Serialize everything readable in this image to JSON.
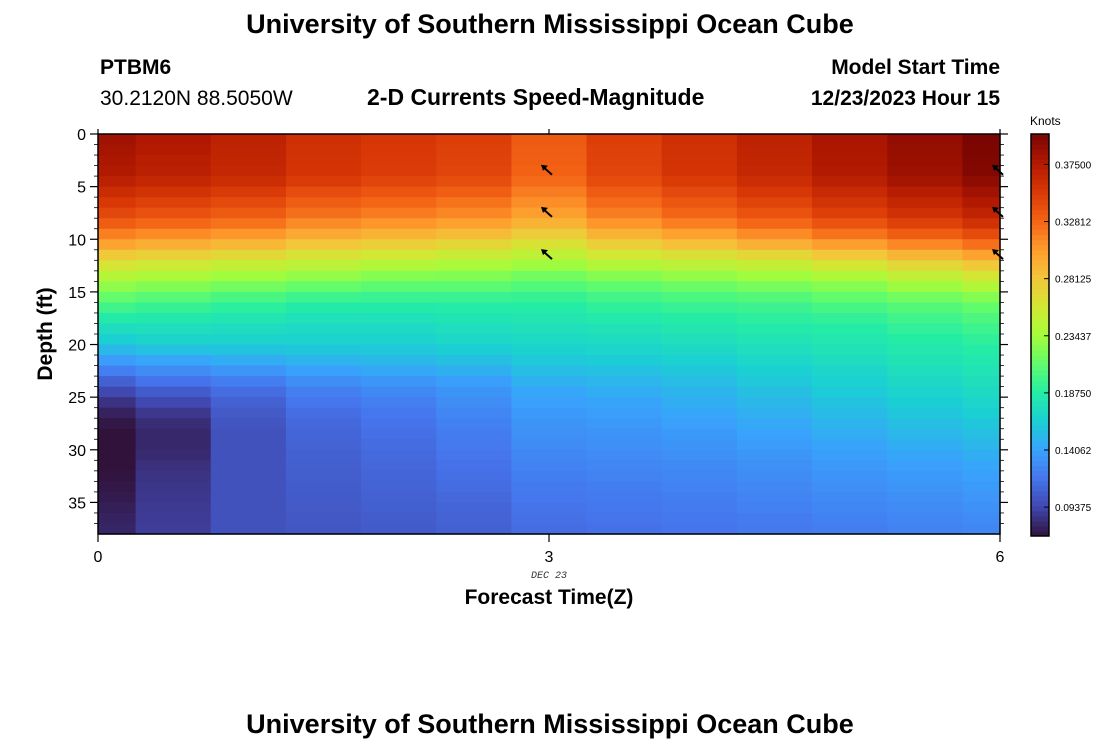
{
  "header": {
    "title": "University of Southern Mississippi Ocean Cube",
    "station_id": "PTBM6",
    "station_coords": "30.2120N  88.5050W",
    "plot_title": "2-D Currents Speed-Magnitude",
    "model_start_label": "Model Start Time",
    "model_start_value": "12/23/2023 Hour 15"
  },
  "footer": {
    "repeat_title": "University of Southern Mississippi Ocean Cube"
  },
  "chart_data": {
    "type": "heatmap",
    "xlabel": "Forecast Time(Z)",
    "ylabel": "Depth (ft)",
    "x_ticks": [
      0,
      3,
      6
    ],
    "x_date_label": "DEC 23",
    "y_ticks": [
      0,
      5,
      10,
      15,
      20,
      25,
      30,
      35
    ],
    "xlim": [
      0,
      6
    ],
    "ylim": [
      38,
      0
    ],
    "colorbar": {
      "label": "Knots",
      "ticks": [
        "0.09375",
        "0.14062",
        "0.18750",
        "0.23437",
        "0.28125",
        "0.32812",
        "0.37500"
      ],
      "range": [
        0.07,
        0.4
      ],
      "colormap": [
        "#30123b",
        "#4145ab",
        "#4675ed",
        "#39a2fc",
        "#1bcfd4",
        "#24eca6",
        "#61fc6c",
        "#a4fc3b",
        "#d1e834",
        "#f3c63a",
        "#fe9b2d",
        "#f36315",
        "#d93806",
        "#b11901",
        "#7a0402"
      ]
    },
    "time_steps": [
      0,
      0.5,
      1,
      1.5,
      2,
      2.5,
      3,
      3.5,
      4,
      4.5,
      5,
      5.5,
      6
    ],
    "depth_profile": {
      "depth_ft": [
        0,
        4,
        8,
        10,
        12,
        14,
        16,
        18,
        20,
        22,
        24,
        26,
        28,
        30,
        32,
        35,
        38
      ],
      "speed_knots_by_time": [
        [
          0.385,
          0.375,
          0.34,
          0.31,
          0.27,
          0.235,
          0.205,
          0.18,
          0.16,
          0.13,
          0.1,
          0.08,
          0.07,
          0.065,
          0.07,
          0.075,
          0.08
        ],
        [
          0.378,
          0.37,
          0.335,
          0.305,
          0.265,
          0.23,
          0.2,
          0.18,
          0.165,
          0.135,
          0.11,
          0.09,
          0.08,
          0.08,
          0.085,
          0.088,
          0.09
        ],
        [
          0.37,
          0.365,
          0.33,
          0.3,
          0.26,
          0.225,
          0.195,
          0.178,
          0.165,
          0.14,
          0.115,
          0.105,
          0.1,
          0.1,
          0.1,
          0.1,
          0.1
        ],
        [
          0.36,
          0.355,
          0.32,
          0.29,
          0.255,
          0.22,
          0.19,
          0.175,
          0.165,
          0.145,
          0.125,
          0.115,
          0.11,
          0.108,
          0.106,
          0.104,
          0.102
        ],
        [
          0.355,
          0.35,
          0.315,
          0.285,
          0.25,
          0.215,
          0.19,
          0.175,
          0.165,
          0.148,
          0.13,
          0.12,
          0.115,
          0.112,
          0.11,
          0.107,
          0.104
        ],
        [
          0.35,
          0.345,
          0.31,
          0.28,
          0.245,
          0.215,
          0.19,
          0.178,
          0.168,
          0.152,
          0.135,
          0.128,
          0.122,
          0.118,
          0.115,
          0.11,
          0.107
        ],
        [
          0.335,
          0.33,
          0.3,
          0.27,
          0.24,
          0.21,
          0.19,
          0.18,
          0.17,
          0.158,
          0.145,
          0.138,
          0.132,
          0.128,
          0.123,
          0.117,
          0.112
        ],
        [
          0.35,
          0.345,
          0.315,
          0.285,
          0.25,
          0.215,
          0.195,
          0.182,
          0.172,
          0.16,
          0.148,
          0.14,
          0.134,
          0.13,
          0.125,
          0.119,
          0.114
        ],
        [
          0.36,
          0.355,
          0.325,
          0.295,
          0.255,
          0.22,
          0.198,
          0.185,
          0.175,
          0.163,
          0.152,
          0.145,
          0.138,
          0.132,
          0.127,
          0.121,
          0.116
        ],
        [
          0.37,
          0.365,
          0.335,
          0.305,
          0.26,
          0.225,
          0.2,
          0.188,
          0.178,
          0.168,
          0.158,
          0.15,
          0.142,
          0.136,
          0.13,
          0.124,
          0.118
        ],
        [
          0.38,
          0.375,
          0.345,
          0.315,
          0.27,
          0.23,
          0.205,
          0.19,
          0.182,
          0.172,
          0.164,
          0.156,
          0.148,
          0.14,
          0.134,
          0.127,
          0.12
        ],
        [
          0.39,
          0.385,
          0.355,
          0.325,
          0.28,
          0.24,
          0.21,
          0.195,
          0.186,
          0.178,
          0.17,
          0.162,
          0.154,
          0.145,
          0.138,
          0.13,
          0.123
        ],
        [
          0.4,
          0.395,
          0.365,
          0.335,
          0.29,
          0.25,
          0.215,
          0.2,
          0.19,
          0.182,
          0.175,
          0.167,
          0.158,
          0.149,
          0.141,
          0.133,
          0.125
        ]
      ]
    },
    "vectors": [
      {
        "time": 3,
        "depth": 3.5
      },
      {
        "time": 3,
        "depth": 7.5
      },
      {
        "time": 3,
        "depth": 11.5
      },
      {
        "time": 6,
        "depth": 3.5
      },
      {
        "time": 6,
        "depth": 7.5
      },
      {
        "time": 6,
        "depth": 11.5
      }
    ]
  }
}
